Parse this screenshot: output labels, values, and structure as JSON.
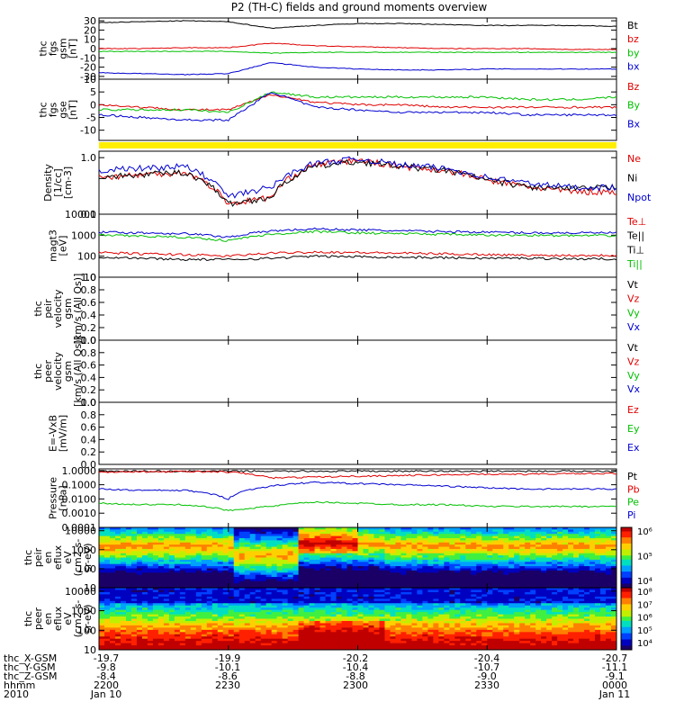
{
  "title": "P2 (TH-C) fields and ground moments overview",
  "panels": [
    {
      "id": "fgs-gsm",
      "ylabel": [
        "thc",
        "fgs",
        "gsm",
        "[nT]"
      ],
      "ticks": [
        "30",
        "20",
        "10",
        "0",
        "-10",
        "-20",
        "-30"
      ],
      "tickvals": [
        30,
        20,
        10,
        0,
        -10,
        -20,
        -30
      ],
      "ymin": -33,
      "ymax": 33,
      "legend": [
        {
          "text": "Bt",
          "color": "#000000"
        },
        {
          "text": "bz",
          "color": "#e00000"
        },
        {
          "text": "by",
          "color": "#00c000"
        },
        {
          "text": "bx",
          "color": "#0000d0"
        }
      ]
    },
    {
      "id": "fgs-gse",
      "ylabel": [
        "thc",
        "fgs",
        "gse",
        "[nT]"
      ],
      "ticks": [
        "10",
        "5",
        "0",
        "-5",
        "-10"
      ],
      "tickvals": [
        10,
        5,
        0,
        -5,
        -10
      ],
      "ymin": -14,
      "ymax": 10,
      "legend": [
        {
          "text": "Bz",
          "color": "#e00000"
        },
        {
          "text": "By",
          "color": "#00c000"
        },
        {
          "text": "Bx",
          "color": "#0000d0"
        }
      ]
    },
    {
      "id": "density",
      "ylabel": [
        "Density",
        "[1/cc]",
        "[cm-3]"
      ],
      "ticks": [
        "1.0",
        "0.1"
      ],
      "tickvals": [
        1.0,
        0.1
      ],
      "ymin": 0.1,
      "ymax": 1.3,
      "log": true,
      "legend": [
        {
          "text": "Ne",
          "color": "#e00000"
        },
        {
          "text": "Ni",
          "color": "#000000"
        },
        {
          "text": "Npot",
          "color": "#0000d0"
        }
      ]
    },
    {
      "id": "temperature",
      "ylabel": [
        "magt3",
        "[eV]"
      ],
      "ticks": [
        "10000",
        "1000",
        "100",
        "10"
      ],
      "tickvals": [
        10000,
        1000,
        100,
        10
      ],
      "ymin": 10,
      "ymax": 10000,
      "log": true,
      "legend": [
        {
          "text": "Te⊥",
          "color": "#e00000"
        },
        {
          "text": "Te||",
          "color": "#000000"
        },
        {
          "text": "Ti⊥",
          "color": "#000000"
        },
        {
          "text": "Ti||",
          "color": "#00c000"
        }
      ]
    },
    {
      "id": "peir-velocity",
      "ylabel": [
        "thc",
        "peir",
        "velocity",
        "gsm",
        "[km/s (All Qs)]"
      ],
      "ticks": [
        "1.0",
        "0.8",
        "0.6",
        "0.4",
        "0.2",
        "0.0"
      ],
      "tickvals": [
        1,
        0.8,
        0.6,
        0.4,
        0.2,
        0
      ],
      "ymin": 0,
      "ymax": 1,
      "legend": [
        {
          "text": "Vt",
          "color": "#000000"
        },
        {
          "text": "Vz",
          "color": "#e00000"
        },
        {
          "text": "Vy",
          "color": "#00c000"
        },
        {
          "text": "Vx",
          "color": "#0000d0"
        }
      ]
    },
    {
      "id": "peer-velocity",
      "ylabel": [
        "thc",
        "peer",
        "velocity",
        "gsm",
        "[km/s (All Qs)]"
      ],
      "ticks": [
        "1.0",
        "0.8",
        "0.6",
        "0.4",
        "0.2",
        "0.0"
      ],
      "tickvals": [
        1,
        0.8,
        0.6,
        0.4,
        0.2,
        0
      ],
      "ymin": 0,
      "ymax": 1,
      "legend": [
        {
          "text": "Vt",
          "color": "#000000"
        },
        {
          "text": "Vz",
          "color": "#e00000"
        },
        {
          "text": "Vy",
          "color": "#00c000"
        },
        {
          "text": "Vx",
          "color": "#0000d0"
        }
      ]
    },
    {
      "id": "efield",
      "ylabel": [
        "E=-VxB",
        "[mV/m]"
      ],
      "ticks": [
        "1.0",
        "0.8",
        "0.6",
        "0.4",
        "0.2",
        "0.0"
      ],
      "tickvals": [
        1,
        0.8,
        0.6,
        0.4,
        0.2,
        0
      ],
      "ymin": 0,
      "ymax": 1,
      "legend": [
        {
          "text": "Ez",
          "color": "#e00000"
        },
        {
          "text": "Ey",
          "color": "#00c000"
        },
        {
          "text": "Ex",
          "color": "#0000d0"
        }
      ]
    },
    {
      "id": "pressure",
      "ylabel": [
        "Pressure",
        "[nPa]"
      ],
      "ticks": [
        "1.0000",
        "0.1000",
        "0.0100",
        "0.0010",
        "0.0001"
      ],
      "tickvals": [
        1,
        0.1,
        0.01,
        0.001,
        0.0001
      ],
      "ymin": 0.0001,
      "ymax": 1.3,
      "log": true,
      "legend": [
        {
          "text": "Pt",
          "color": "#000000"
        },
        {
          "text": "Pb",
          "color": "#e00000"
        },
        {
          "text": "Pe",
          "color": "#00c000"
        },
        {
          "text": "Pi",
          "color": "#0000d0"
        }
      ]
    },
    {
      "id": "peir-eflux",
      "ylabel": [
        "thc",
        "peir",
        "en",
        "eflux",
        "eV",
        "(cm2-s-",
        "sr-eV)"
      ],
      "ticks": [
        "10000",
        "1000",
        "100",
        "10"
      ],
      "tickvals": [
        10000,
        1000,
        100,
        10
      ],
      "ymin": 10,
      "ymax": 15000,
      "log": true,
      "colorbar": [
        "10⁶",
        "10⁵",
        "10⁴"
      ]
    },
    {
      "id": "peer-eflux",
      "ylabel": [
        "thc",
        "peer",
        "en",
        "eflux",
        "eV",
        "(cm2-s-",
        "sr-eV)"
      ],
      "ticks": [
        "10000",
        "1000",
        "100",
        "10"
      ],
      "tickvals": [
        10000,
        1000,
        100,
        10
      ],
      "ymin": 10,
      "ymax": 15000,
      "log": true,
      "colorbar": [
        "10⁸",
        "10⁷",
        "10⁶",
        "10⁵",
        "10⁴"
      ]
    }
  ],
  "footer": {
    "rows": [
      {
        "label": "thc_X-GSM",
        "values": [
          "-19.7",
          "-19.9",
          "-20.2",
          "-20.4",
          "-20.7"
        ]
      },
      {
        "label": "thc_Y-GSM",
        "values": [
          "-9.8",
          "-10.1",
          "-10.4",
          "-10.7",
          "-11.1"
        ]
      },
      {
        "label": "thc_Z-GSM",
        "values": [
          "-8.4",
          "-8.6",
          "-8.8",
          "-9.0",
          "-9.1"
        ]
      },
      {
        "label": "hhmm",
        "values": [
          "2200",
          "2230",
          "2300",
          "2330",
          "0000"
        ]
      },
      {
        "label": "2010",
        "values": [
          "Jan 10",
          "",
          "",
          "",
          "Jan 11"
        ]
      }
    ]
  },
  "chart_data": [
    {
      "type": "line",
      "title": "P2 (TH-C) fields and ground moments overview",
      "ylabel": "thc fgs gsm [nT]",
      "ylim": [
        -33,
        33
      ],
      "x": [
        "2200",
        "2210",
        "2220",
        "2230",
        "2240",
        "2250",
        "2300",
        "2310",
        "2320",
        "2330",
        "2340",
        "2350",
        "0000"
      ],
      "series": [
        {
          "name": "Bt",
          "values": [
            28,
            29,
            30,
            29,
            22,
            25,
            27,
            27,
            26,
            25,
            25,
            25,
            24
          ]
        },
        {
          "name": "bz",
          "values": [
            0,
            0,
            1,
            1,
            6,
            3,
            2,
            1,
            0,
            0,
            0,
            -1,
            -1
          ]
        },
        {
          "name": "by",
          "values": [
            -3,
            -3,
            -3,
            -3,
            -5,
            -4,
            -4,
            -4,
            -4,
            -4,
            -4,
            -4,
            -4
          ]
        },
        {
          "name": "bx",
          "values": [
            -26,
            -27,
            -28,
            -27,
            -15,
            -20,
            -22,
            -23,
            -23,
            -22,
            -22,
            -22,
            -22
          ]
        }
      ]
    },
    {
      "type": "line",
      "ylabel": "thc fgs gse [nT]",
      "ylim": [
        -14,
        10
      ],
      "x": [
        "2200",
        "2210",
        "2220",
        "2230",
        "2240",
        "2250",
        "2300",
        "2310",
        "2320",
        "2330",
        "2340",
        "2350",
        "0000"
      ],
      "series": [
        {
          "name": "Bz",
          "values": [
            0,
            -1,
            -2,
            -2,
            4,
            1,
            0,
            0,
            -1,
            -1,
            -1,
            -1,
            -1
          ]
        },
        {
          "name": "By",
          "values": [
            -2,
            -2,
            -2,
            -3,
            5,
            3,
            3,
            3,
            3,
            3,
            2,
            2,
            3
          ]
        },
        {
          "name": "Bx",
          "values": [
            -4,
            -5,
            -6,
            -6,
            5,
            -1,
            -2,
            -3,
            -3,
            -3,
            -4,
            -4,
            -4
          ]
        }
      ]
    },
    {
      "type": "line",
      "ylabel": "Density [1/cc] [cm-3]",
      "log": true,
      "ylim": [
        0.1,
        1.3
      ],
      "x": [
        "2200",
        "2210",
        "2220",
        "2230",
        "2240",
        "2250",
        "2300",
        "2310",
        "2320",
        "2330",
        "2340",
        "2350",
        "0000"
      ],
      "series": [
        {
          "name": "Ne",
          "values": [
            0.45,
            0.5,
            0.55,
            0.15,
            0.2,
            0.75,
            0.9,
            0.7,
            0.6,
            0.4,
            0.3,
            0.25,
            0.25
          ]
        },
        {
          "name": "Ni",
          "values": [
            0.45,
            0.5,
            0.55,
            0.15,
            0.2,
            0.7,
            0.85,
            0.7,
            0.6,
            0.4,
            0.3,
            0.28,
            0.3
          ]
        },
        {
          "name": "Npot",
          "values": [
            0.6,
            0.65,
            0.7,
            0.2,
            0.3,
            0.8,
            0.95,
            0.75,
            0.65,
            0.45,
            0.35,
            0.3,
            0.3
          ]
        }
      ]
    },
    {
      "type": "line",
      "ylabel": "magt3 [eV]",
      "log": true,
      "ylim": [
        10,
        10000
      ],
      "x": [
        "2200",
        "2210",
        "2220",
        "2230",
        "2240",
        "2250",
        "2300",
        "2310",
        "2320",
        "2330",
        "2340",
        "2350",
        "0000"
      ],
      "series": [
        {
          "name": "Te⊥",
          "values": [
            150,
            130,
            120,
            100,
            140,
            160,
            150,
            140,
            130,
            120,
            110,
            110,
            110
          ]
        },
        {
          "name": "Te||",
          "values": [
            90,
            80,
            70,
            70,
            80,
            100,
            95,
            90,
            85,
            80,
            80,
            75,
            75
          ]
        },
        {
          "name": "Ti⊥",
          "values": [
            1400,
            1300,
            1200,
            800,
            1600,
            2000,
            1800,
            1600,
            1500,
            1400,
            1300,
            1300,
            1300
          ]
        },
        {
          "name": "Ti||",
          "values": [
            1000,
            900,
            800,
            550,
            1100,
            1500,
            1300,
            1200,
            1100,
            1000,
            1000,
            950,
            950
          ]
        }
      ]
    },
    {
      "type": "line",
      "ylabel": "Pressure [nPa]",
      "log": true,
      "ylim": [
        0.0001,
        1.3
      ],
      "x": [
        "2200",
        "2210",
        "2220",
        "2230",
        "2240",
        "2250",
        "2300",
        "2310",
        "2320",
        "2330",
        "2340",
        "2350",
        "0000"
      ],
      "series": [
        {
          "name": "Pt",
          "values": [
            0.9,
            0.9,
            0.9,
            0.9,
            0.9,
            0.9,
            0.9,
            0.9,
            0.9,
            0.9,
            0.9,
            0.9,
            0.9
          ]
        },
        {
          "name": "Pb",
          "values": [
            0.8,
            0.8,
            0.85,
            0.8,
            0.3,
            0.35,
            0.4,
            0.45,
            0.5,
            0.55,
            0.55,
            0.6,
            0.6
          ]
        },
        {
          "name": "Pe",
          "values": [
            0.005,
            0.004,
            0.004,
            0.0015,
            0.003,
            0.006,
            0.005,
            0.004,
            0.004,
            0.003,
            0.003,
            0.003,
            0.003
          ]
        },
        {
          "name": "Pi",
          "values": [
            0.05,
            0.04,
            0.04,
            0.01,
            0.08,
            0.15,
            0.12,
            0.1,
            0.08,
            0.06,
            0.05,
            0.05,
            0.05
          ]
        }
      ]
    }
  ]
}
